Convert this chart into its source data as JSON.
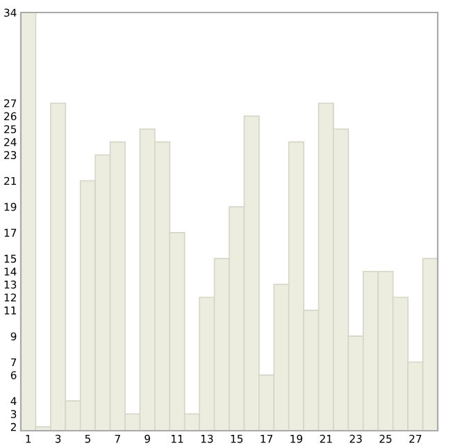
{
  "chart_data": {
    "type": "bar",
    "categories": [
      "1",
      null,
      "3",
      null,
      "5",
      null,
      "7",
      null,
      "9",
      null,
      "11",
      null,
      "13",
      null,
      "15",
      null,
      "17",
      null,
      "19",
      null,
      "21",
      null,
      "23",
      null,
      "25",
      null,
      "27",
      null
    ],
    "values": [
      34,
      2,
      27,
      4,
      21,
      23,
      24,
      3,
      25,
      24,
      17,
      3,
      12,
      15,
      19,
      26,
      6,
      13,
      24,
      11,
      27,
      25,
      9,
      14,
      14,
      12,
      7,
      15
    ],
    "color": "#ededdf",
    "ylim": [
      1.7,
      34
    ],
    "yticks": [
      2,
      3,
      4,
      6,
      7,
      9,
      11,
      12,
      13,
      14,
      15,
      17,
      19,
      21,
      23,
      24,
      25,
      26,
      27,
      34
    ],
    "grid": false,
    "legend": false
  }
}
